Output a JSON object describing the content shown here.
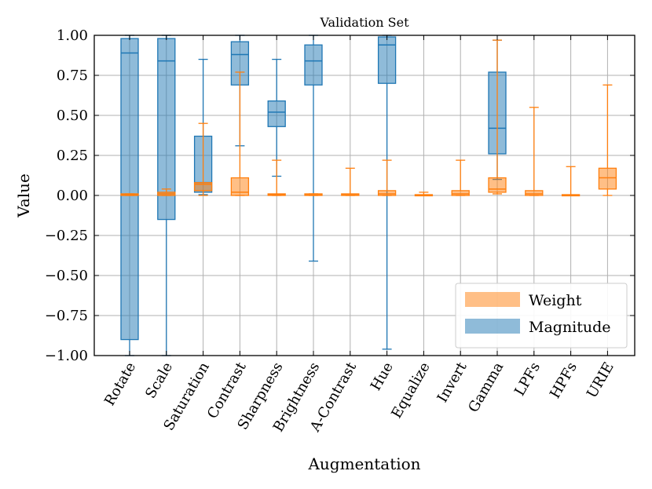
{
  "chart_data": {
    "type": "box",
    "title": "Validation Set",
    "xlabel": "Augmentation",
    "ylabel": "Value",
    "ylim": [
      -1.0,
      1.0
    ],
    "yticks": [
      1.0,
      0.75,
      0.5,
      0.25,
      0.0,
      -0.25,
      -0.5,
      -0.75,
      -1.0
    ],
    "ytick_labels": [
      "1.00",
      "0.75",
      "0.50",
      "0.25",
      "0.00",
      "−0.25",
      "−0.50",
      "−0.75",
      "−1.00"
    ],
    "grid": true,
    "legend_position": "bottom-right",
    "categories": [
      "Rotate",
      "Scale",
      "Saturation",
      "Contrast",
      "Sharpness",
      "Brightness",
      "A-Contrast",
      "Hue",
      "Equalize",
      "Invert",
      "Gamma",
      "LPFs",
      "HPFs",
      "URIE"
    ],
    "series": [
      {
        "name": "Magnitude",
        "color": "#1f77b4",
        "boxes": [
          {
            "category": "Rotate",
            "whislo": -1.0,
            "q1": -0.9,
            "median": 0.89,
            "q3": 0.98,
            "whishi": 1.0
          },
          {
            "category": "Scale",
            "whislo": -1.0,
            "q1": -0.15,
            "median": 0.84,
            "q3": 0.98,
            "whishi": 1.0
          },
          {
            "category": "Saturation",
            "whislo": 0.005,
            "q1": 0.02,
            "median": 0.08,
            "q3": 0.37,
            "whishi": 0.85
          },
          {
            "category": "Contrast",
            "whislo": 0.31,
            "q1": 0.69,
            "median": 0.88,
            "q3": 0.96,
            "whishi": 1.0
          },
          {
            "category": "Sharpness",
            "whislo": 0.12,
            "q1": 0.43,
            "median": 0.52,
            "q3": 0.59,
            "whishi": 0.85
          },
          {
            "category": "Brightness",
            "whislo": -0.41,
            "q1": 0.69,
            "median": 0.84,
            "q3": 0.94,
            "whishi": 1.0
          },
          {
            "category": "Hue",
            "whislo": -0.96,
            "q1": 0.7,
            "median": 0.94,
            "q3": 0.99,
            "whishi": 1.0
          },
          {
            "category": "Gamma",
            "whislo": 0.1,
            "q1": 0.26,
            "median": 0.42,
            "q3": 0.77,
            "whishi": 0.97
          }
        ]
      },
      {
        "name": "Weight",
        "color": "#ff7f0e",
        "boxes": [
          {
            "category": "Rotate",
            "whislo": 0.0,
            "q1": 0.0,
            "median": 0.005,
            "q3": 0.01,
            "whishi": 0.01
          },
          {
            "category": "Scale",
            "whislo": 0.0,
            "q1": 0.0,
            "median": 0.01,
            "q3": 0.02,
            "whishi": 0.04
          },
          {
            "category": "Saturation",
            "whislo": 0.0,
            "q1": 0.03,
            "median": 0.07,
            "q3": 0.08,
            "whishi": 0.45
          },
          {
            "category": "Contrast",
            "whislo": 0.0,
            "q1": 0.0,
            "median": 0.02,
            "q3": 0.11,
            "whishi": 0.77
          },
          {
            "category": "Sharpness",
            "whislo": 0.0,
            "q1": 0.0,
            "median": 0.005,
            "q3": 0.01,
            "whishi": 0.22
          },
          {
            "category": "Brightness",
            "whislo": 0.0,
            "q1": 0.0,
            "median": 0.003,
            "q3": 0.01,
            "whishi": 0.01
          },
          {
            "category": "A-Contrast",
            "whislo": 0.0,
            "q1": 0.0,
            "median": 0.003,
            "q3": 0.01,
            "whishi": 0.17
          },
          {
            "category": "Hue",
            "whislo": 0.0,
            "q1": 0.0,
            "median": 0.01,
            "q3": 0.03,
            "whishi": 0.22
          },
          {
            "category": "Equalize",
            "whislo": 0.0,
            "q1": 0.0,
            "median": 0.002,
            "q3": 0.005,
            "whishi": 0.02
          },
          {
            "category": "Invert",
            "whislo": 0.0,
            "q1": 0.0,
            "median": 0.01,
            "q3": 0.03,
            "whishi": 0.22
          },
          {
            "category": "Gamma",
            "whislo": 0.01,
            "q1": 0.02,
            "median": 0.04,
            "q3": 0.11,
            "whishi": 0.97
          },
          {
            "category": "LPFs",
            "whislo": 0.0,
            "q1": 0.0,
            "median": 0.01,
            "q3": 0.03,
            "whishi": 0.55
          },
          {
            "category": "HPFs",
            "whislo": 0.0,
            "q1": 0.0,
            "median": 0.002,
            "q3": 0.005,
            "whishi": 0.18
          },
          {
            "category": "URIE",
            "whislo": 0.0,
            "q1": 0.04,
            "median": 0.11,
            "q3": 0.17,
            "whishi": 0.69
          }
        ]
      }
    ],
    "legend": [
      "Weight",
      "Magnitude"
    ]
  }
}
